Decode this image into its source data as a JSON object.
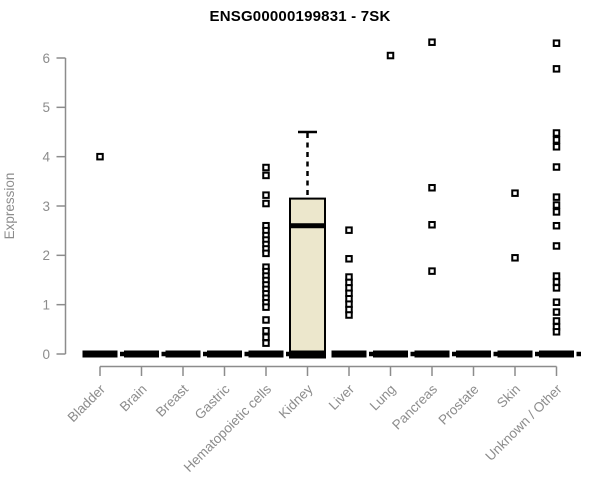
{
  "title": "ENSG00000199831 - 7SK",
  "chart_data": {
    "type": "boxplot",
    "title": "ENSG00000199831 - 7SK",
    "xlabel": "",
    "ylabel": "Expression",
    "ylim": [
      0,
      6.5
    ],
    "yticks": [
      0,
      1,
      2,
      3,
      4,
      5,
      6
    ],
    "grid": false,
    "legend": null,
    "categories": [
      "Bladder",
      "Brain",
      "Breast",
      "Gastric",
      "Hematopoietic cells",
      "Kidney",
      "Liver",
      "Lung",
      "Pancreas",
      "Prostate",
      "Skin",
      "Unknown / Other"
    ],
    "series": [
      {
        "name": "Bladder",
        "box": {
          "min": 0,
          "q1": 0,
          "median": 0,
          "q3": 0,
          "max": 0
        },
        "zero_outlier": true,
        "outliers": [
          4.0
        ]
      },
      {
        "name": "Brain",
        "box": {
          "min": 0,
          "q1": 0,
          "median": 0,
          "q3": 0,
          "max": 0
        },
        "zero_outlier": true,
        "outliers": []
      },
      {
        "name": "Breast",
        "box": {
          "min": 0,
          "q1": 0,
          "median": 0,
          "q3": 0,
          "max": 0
        },
        "zero_outlier": true,
        "outliers": []
      },
      {
        "name": "Gastric",
        "box": {
          "min": 0,
          "q1": 0,
          "median": 0,
          "q3": 0,
          "max": 0
        },
        "zero_outlier": true,
        "outliers": []
      },
      {
        "name": "Hematopoietic cells",
        "box": {
          "min": 0,
          "q1": 0,
          "median": 0,
          "q3": 0,
          "max": 0
        },
        "zero_outlier": true,
        "outliers": [
          3.78,
          3.62,
          3.22,
          3.05,
          2.6,
          2.5,
          2.4,
          2.31,
          2.22,
          2.13,
          2.04,
          1.76,
          1.67,
          1.58,
          1.49,
          1.4,
          1.31,
          1.22,
          1.13,
          1.04,
          0.95,
          0.69,
          0.47,
          0.34,
          0.22
        ]
      },
      {
        "name": "Kidney",
        "box": {
          "min": 0,
          "q1": 0,
          "median": 2.6,
          "q3": 3.15,
          "max": 4.5
        },
        "zero_outlier": false,
        "outliers": []
      },
      {
        "name": "Liver",
        "box": {
          "min": 0,
          "q1": 0,
          "median": 0,
          "q3": 0,
          "max": 0
        },
        "zero_outlier": true,
        "outliers": [
          2.51,
          1.93,
          1.56,
          1.45,
          1.34,
          1.23,
          1.12,
          1.01,
          0.9,
          0.79
        ]
      },
      {
        "name": "Lung",
        "box": {
          "min": 0,
          "q1": 0,
          "median": 0,
          "q3": 0,
          "max": 0
        },
        "zero_outlier": true,
        "outliers": [
          6.05
        ]
      },
      {
        "name": "Pancreas",
        "box": {
          "min": 0,
          "q1": 0,
          "median": 0,
          "q3": 0,
          "max": 0
        },
        "zero_outlier": true,
        "outliers": [
          6.32,
          3.37,
          2.62,
          1.68
        ]
      },
      {
        "name": "Prostate",
        "box": {
          "min": 0,
          "q1": 0,
          "median": 0,
          "q3": 0,
          "max": 0
        },
        "zero_outlier": true,
        "outliers": []
      },
      {
        "name": "Skin",
        "box": {
          "min": 0,
          "q1": 0,
          "median": 0,
          "q3": 0,
          "max": 0
        },
        "zero_outlier": true,
        "outliers": [
          3.26,
          1.95
        ]
      },
      {
        "name": "Unknown / Other",
        "box": {
          "min": 0,
          "q1": 0,
          "median": 0,
          "q3": 0,
          "max": 0
        },
        "zero_outlier": true,
        "outliers": [
          6.3,
          5.78,
          4.48,
          4.34,
          4.2,
          3.79,
          3.18,
          3.02,
          2.88,
          2.6,
          2.19,
          1.58,
          1.46,
          1.34,
          1.05,
          0.85,
          0.67,
          0.55,
          0.45
        ]
      }
    ],
    "colors": {
      "box_fill": "#ECE7CC",
      "box_border": "#000000",
      "median": "#000000",
      "zero_bar": "#000000",
      "outlier": "#000000",
      "axis": "#8C8C8C",
      "tick_label": "#8C8C8C",
      "title": "#000000",
      "background": "#FFFFFF"
    }
  }
}
